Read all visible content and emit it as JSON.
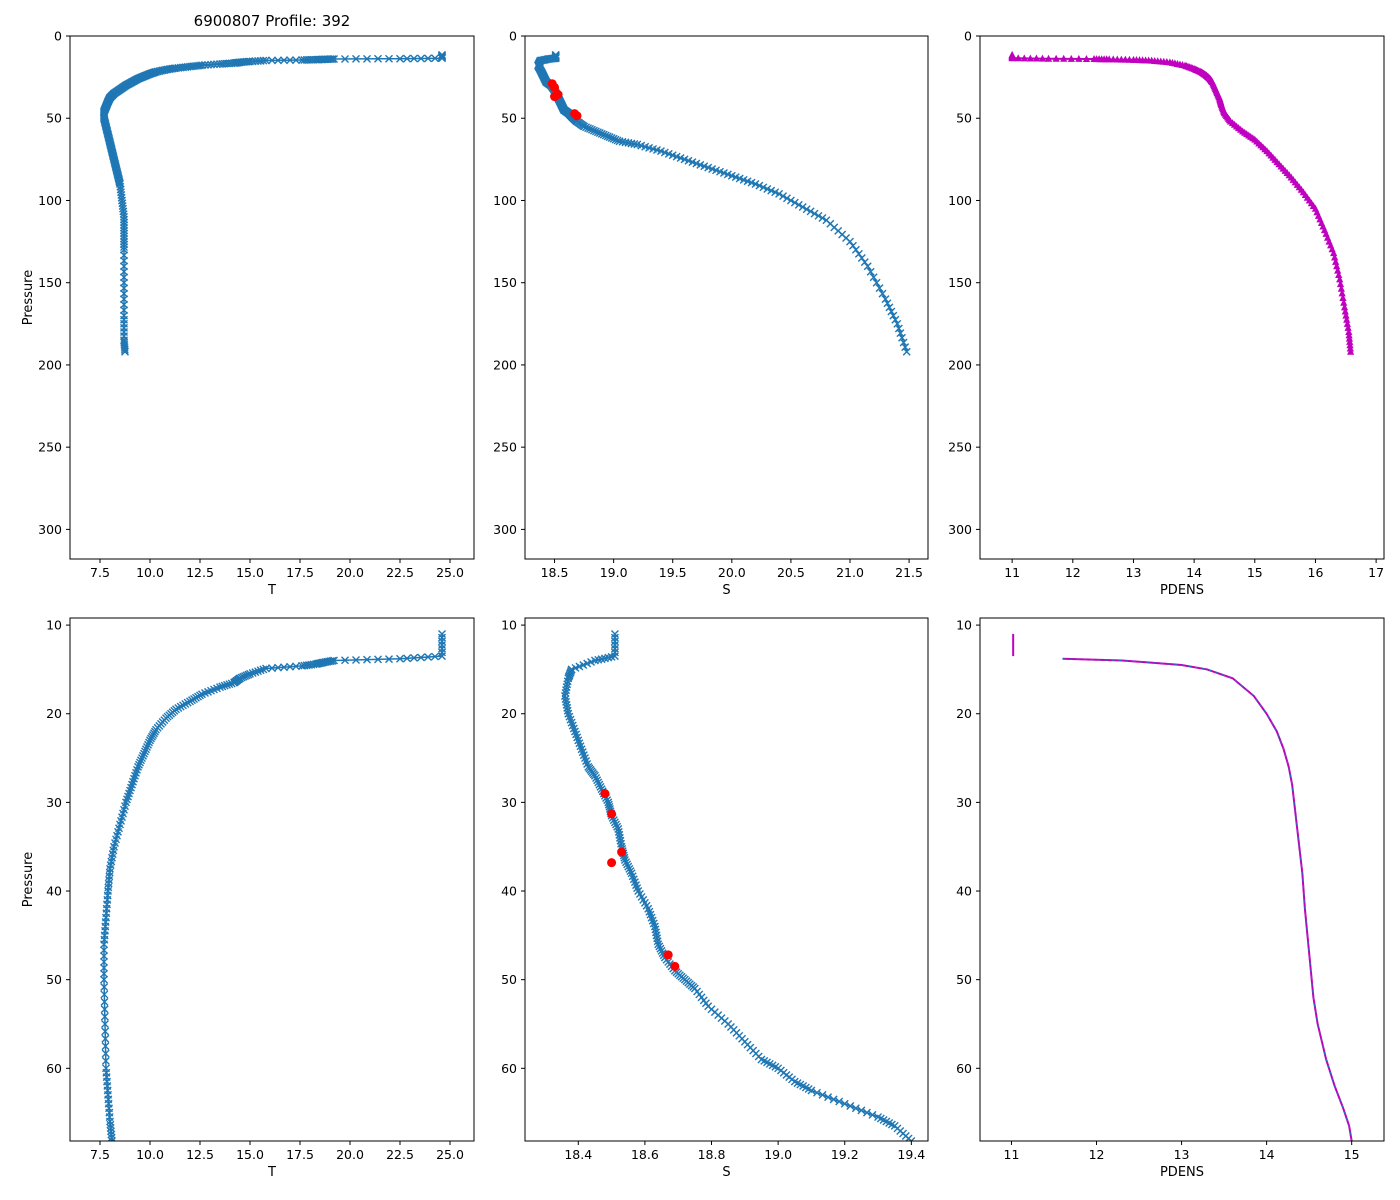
{
  "figure_title": "6900807 Profile: 392",
  "colors": {
    "series": "#1f77b4",
    "flag": "#ff0000",
    "density": "#bf00bf",
    "density_dash": "#1f77b4"
  },
  "chart_data": [
    {
      "id": "p1",
      "type": "line",
      "xlabel": "T",
      "ylabel": "Pressure",
      "xlim": [
        6.0,
        26.2
      ],
      "ylim": [
        318,
        0
      ],
      "y_inverted": true,
      "xticks": [
        "7.5",
        "10.0",
        "12.5",
        "15.0",
        "17.5",
        "20.0",
        "22.5",
        "25.0"
      ],
      "yticks": [
        "0",
        "50",
        "100",
        "150",
        "200",
        "250",
        "300"
      ],
      "series": [
        {
          "name": "T",
          "marker": "x",
          "x": [
            24.6,
            24.6,
            22.5,
            19.2,
            18.7,
            18.3,
            17.6,
            15.8,
            15.0,
            14.5,
            14.2,
            13.5,
            12.6,
            12.0,
            11.3,
            10.8,
            10.3,
            10.0,
            9.7,
            9.4,
            9.1,
            8.8,
            8.5,
            8.2,
            8.0,
            7.9,
            7.8,
            7.7,
            7.7,
            7.8,
            7.9,
            8.0,
            8.1,
            8.2,
            8.3,
            8.4,
            8.5,
            8.6,
            8.7,
            8.7,
            8.7,
            8.7,
            8.7,
            8.7,
            8.75
          ],
          "y": [
            11.5,
            13.5,
            13.8,
            14.0,
            14.2,
            14.4,
            14.6,
            14.9,
            15.5,
            16.0,
            16.5,
            17.0,
            17.8,
            18.6,
            19.5,
            20.5,
            21.8,
            23.0,
            24.5,
            26.0,
            28.0,
            30.0,
            32.5,
            35.0,
            37.5,
            40.0,
            43.0,
            46.0,
            50.0,
            55.0,
            60.0,
            65.0,
            70.0,
            75.0,
            80.0,
            85.0,
            90.0,
            100.0,
            110.0,
            120.0,
            130.0,
            150.0,
            170.0,
            185.0,
            192.0
          ]
        }
      ]
    },
    {
      "id": "p2",
      "type": "line",
      "xlabel": "S",
      "ylabel": "",
      "xlim": [
        18.25,
        21.66
      ],
      "ylim": [
        318,
        0
      ],
      "y_inverted": true,
      "xticks": [
        "18.5",
        "19.0",
        "19.5",
        "20.0",
        "20.5",
        "21.0",
        "21.5"
      ],
      "yticks": [
        "0",
        "50",
        "100",
        "150",
        "200",
        "250",
        "300"
      ],
      "series": [
        {
          "name": "S",
          "marker": "x",
          "x": [
            18.51,
            18.51,
            18.45,
            18.38,
            18.36,
            18.39,
            18.41,
            18.43,
            18.47,
            18.5,
            18.52,
            18.54,
            18.56,
            18.58,
            18.62,
            18.64,
            18.66,
            18.69,
            18.75,
            18.85,
            18.95,
            19.05,
            19.2,
            19.4,
            19.6,
            19.8,
            20.0,
            20.2,
            20.4,
            20.6,
            20.8,
            21.0,
            21.15,
            21.3,
            21.4,
            21.48
          ],
          "y": [
            11.5,
            13.5,
            14.0,
            15.0,
            18.0,
            22.0,
            25.0,
            28.0,
            30.0,
            33.0,
            36.0,
            39.0,
            42.0,
            45.0,
            47.0,
            48.5,
            50.0,
            52.0,
            55.0,
            58.0,
            61.0,
            64.0,
            66.0,
            70.0,
            75.0,
            80.0,
            85.0,
            90.0,
            96.0,
            104.0,
            112.0,
            125.0,
            140.0,
            160.0,
            175.0,
            192.0
          ]
        }
      ],
      "flags": {
        "name": "flagged S",
        "x": [
          18.48,
          18.5,
          18.53,
          18.5,
          18.67,
          18.69
        ],
        "y": [
          29.0,
          31.3,
          35.6,
          36.8,
          47.2,
          48.5
        ]
      }
    },
    {
      "id": "p3",
      "type": "line",
      "xlabel": "PDENS",
      "ylabel": "",
      "xlim": [
        10.47,
        17.13
      ],
      "ylim": [
        318,
        0
      ],
      "y_inverted": true,
      "xticks": [
        "11",
        "12",
        "13",
        "14",
        "15",
        "16",
        "17"
      ],
      "yticks": [
        "0",
        "50",
        "100",
        "150",
        "200",
        "250",
        "300"
      ],
      "series": [
        {
          "name": "PDENS",
          "marker": "^",
          "x": [
            11.0,
            11.0,
            11.6,
            12.35,
            12.6,
            13.0,
            13.3,
            13.6,
            13.85,
            14.0,
            14.12,
            14.2,
            14.26,
            14.3,
            14.36,
            14.42,
            14.45,
            14.5,
            14.6,
            14.8,
            15.0,
            15.2,
            15.4,
            15.6,
            15.8,
            16.0,
            16.15,
            16.3,
            16.4,
            16.48,
            16.55,
            16.58
          ],
          "y": [
            11.5,
            13.5,
            13.8,
            14.0,
            14.2,
            14.5,
            15.0,
            16.0,
            18.0,
            20.0,
            22.0,
            24.0,
            26.0,
            28.0,
            33.0,
            38.0,
            42.0,
            47.0,
            52.0,
            58.0,
            63.0,
            70.0,
            78.0,
            86.0,
            95.0,
            105.0,
            118.0,
            132.0,
            148.0,
            165.0,
            180.0,
            192.0
          ]
        }
      ]
    },
    {
      "id": "p4",
      "type": "line",
      "xlabel": "T",
      "ylabel": "Pressure",
      "xlim": [
        6.0,
        26.2
      ],
      "ylim": [
        68.2,
        9.2
      ],
      "y_inverted": true,
      "xticks": [
        "7.5",
        "10.0",
        "12.5",
        "15.0",
        "17.5",
        "20.0",
        "22.5",
        "25.0"
      ],
      "yticks": [
        "10",
        "20",
        "30",
        "40",
        "50",
        "60"
      ],
      "series": [
        {
          "name": "T",
          "marker": "x",
          "x": [
            24.6,
            24.6,
            22.5,
            19.2,
            18.7,
            18.3,
            17.6,
            15.8,
            15.0,
            14.5,
            14.2,
            13.5,
            12.6,
            12.0,
            11.3,
            10.8,
            10.3,
            10.0,
            9.7,
            9.4,
            9.1,
            8.8,
            8.5,
            8.2,
            8.0,
            7.9,
            7.8,
            7.7,
            7.7,
            7.75,
            7.8,
            7.9,
            8.0,
            8.1
          ],
          "y": [
            11.0,
            13.5,
            13.8,
            14.0,
            14.2,
            14.4,
            14.6,
            14.9,
            15.5,
            16.0,
            16.5,
            17.0,
            17.8,
            18.6,
            19.5,
            20.5,
            21.8,
            23.0,
            24.5,
            26.0,
            28.0,
            30.0,
            32.5,
            35.0,
            37.5,
            40.0,
            43.0,
            46.0,
            50.0,
            55.0,
            60.0,
            63.0,
            66.0,
            68.2
          ]
        }
      ]
    },
    {
      "id": "p5",
      "type": "line",
      "xlabel": "S",
      "ylabel": "",
      "xlim": [
        18.24,
        19.45
      ],
      "ylim": [
        68.2,
        9.2
      ],
      "y_inverted": true,
      "xticks": [
        "18.4",
        "18.6",
        "18.8",
        "19.0",
        "19.2",
        "19.4"
      ],
      "yticks": [
        "10",
        "20",
        "30",
        "40",
        "50",
        "60"
      ],
      "series": [
        {
          "name": "S",
          "marker": "x",
          "x": [
            18.51,
            18.51,
            18.45,
            18.38,
            18.37,
            18.36,
            18.37,
            18.39,
            18.41,
            18.43,
            18.45,
            18.47,
            18.49,
            18.5,
            18.52,
            18.53,
            18.54,
            18.56,
            18.58,
            18.61,
            18.63,
            18.64,
            18.66,
            18.69,
            18.72,
            18.75,
            18.79,
            18.85,
            18.9,
            18.95,
            19.0,
            19.05,
            19.1,
            19.2,
            19.3,
            19.35,
            19.4
          ],
          "y": [
            11.0,
            13.5,
            14.0,
            15.0,
            16.0,
            18.0,
            20.0,
            22.0,
            24.0,
            26.0,
            27.0,
            28.5,
            30.0,
            31.5,
            33.0,
            35.0,
            36.5,
            38.0,
            40.0,
            42.0,
            44.0,
            46.0,
            47.5,
            49.0,
            50.0,
            51.0,
            53.0,
            55.0,
            57.0,
            59.0,
            60.0,
            61.5,
            62.5,
            64.0,
            65.5,
            66.5,
            68.2
          ]
        }
      ],
      "flags": {
        "name": "flagged S",
        "x": [
          18.48,
          18.5,
          18.53,
          18.5,
          18.67,
          18.69
        ],
        "y": [
          29.0,
          31.3,
          35.6,
          36.8,
          47.2,
          48.5
        ]
      }
    },
    {
      "id": "p6",
      "type": "line",
      "xlabel": "PDENS",
      "ylabel": "",
      "xlim": [
        10.63,
        15.38
      ],
      "ylim": [
        68.2,
        9.2
      ],
      "y_inverted": true,
      "xticks": [
        "11",
        "12",
        "13",
        "14",
        "15"
      ],
      "yticks": [
        "10",
        "20",
        "30",
        "40",
        "50",
        "60"
      ],
      "series": [
        {
          "name": "PDENS",
          "marker": "",
          "x": [
            11.6,
            12.3,
            12.6,
            13.0,
            13.3,
            13.6,
            13.85,
            14.0,
            14.12,
            14.2,
            14.26,
            14.3,
            14.36,
            14.42,
            14.45,
            14.5,
            14.55,
            14.6,
            14.7,
            14.8,
            14.9,
            14.97,
            15.0
          ],
          "y": [
            13.8,
            14.0,
            14.2,
            14.5,
            15.0,
            16.0,
            18.0,
            20.0,
            22.0,
            24.0,
            26.0,
            28.0,
            33.0,
            38.0,
            42.0,
            47.0,
            52.0,
            55.0,
            59.0,
            62.0,
            64.5,
            66.5,
            68.2
          ]
        }
      ],
      "segments": [
        {
          "x": [
            11.02,
            11.02
          ],
          "y": [
            11.0,
            13.5
          ]
        }
      ]
    }
  ]
}
